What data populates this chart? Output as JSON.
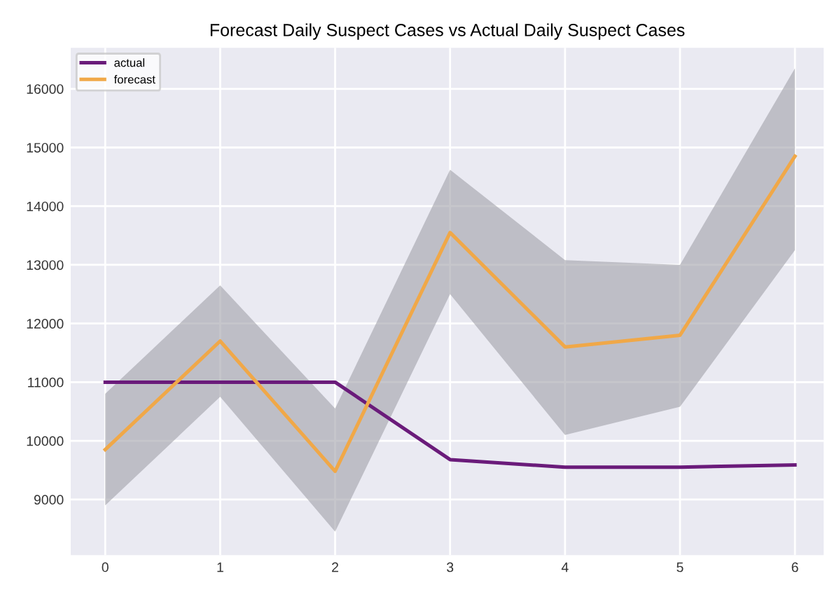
{
  "chart_data": {
    "type": "line",
    "title": "Forecast Daily Suspect Cases vs Actual Daily Suspect Cases",
    "x": [
      0,
      1,
      2,
      3,
      4,
      5,
      6
    ],
    "series": [
      {
        "name": "actual",
        "color": "#6a1b7a",
        "values": [
          11000,
          11000,
          11000,
          9680,
          9550,
          9550,
          9590
        ]
      },
      {
        "name": "forecast",
        "color": "#f0a848",
        "values": [
          9850,
          11700,
          9480,
          13550,
          11600,
          11800,
          14850
        ],
        "lower": [
          8900,
          10750,
          8450,
          12500,
          10100,
          10580,
          13250
        ],
        "upper": [
          10800,
          12650,
          10550,
          14620,
          13080,
          13000,
          16350
        ]
      }
    ],
    "xlim": [
      -0.3,
      6.25
    ],
    "xticks": [
      0,
      1,
      2,
      3,
      4,
      5,
      6
    ],
    "ylim": [
      8050,
      16700
    ],
    "yticks": [
      9000,
      10000,
      11000,
      12000,
      13000,
      14000,
      15000,
      16000
    ],
    "grid": true,
    "legend": "top left"
  }
}
